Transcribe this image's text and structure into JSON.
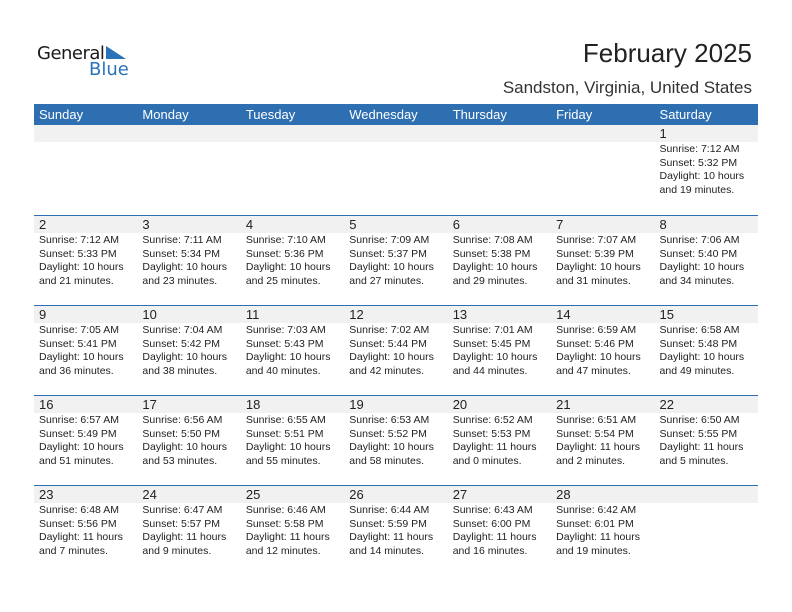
{
  "logo": {
    "general": "General",
    "blue": "Blue"
  },
  "title": "February 2025",
  "location": "Sandston, Virginia, United States",
  "weekdays": [
    "Sunday",
    "Monday",
    "Tuesday",
    "Wednesday",
    "Thursday",
    "Friday",
    "Saturday"
  ],
  "colors": {
    "header": "#2e6fb2",
    "band": "#f1f1f1"
  },
  "weeks": [
    [
      null,
      null,
      null,
      null,
      null,
      null,
      {
        "day": "1",
        "sunrise": "Sunrise: 7:12 AM",
        "sunset": "Sunset: 5:32 PM",
        "daylight1": "Daylight: 10 hours",
        "daylight2": "and 19 minutes."
      }
    ],
    [
      {
        "day": "2",
        "sunrise": "Sunrise: 7:12 AM",
        "sunset": "Sunset: 5:33 PM",
        "daylight1": "Daylight: 10 hours",
        "daylight2": "and 21 minutes."
      },
      {
        "day": "3",
        "sunrise": "Sunrise: 7:11 AM",
        "sunset": "Sunset: 5:34 PM",
        "daylight1": "Daylight: 10 hours",
        "daylight2": "and 23 minutes."
      },
      {
        "day": "4",
        "sunrise": "Sunrise: 7:10 AM",
        "sunset": "Sunset: 5:36 PM",
        "daylight1": "Daylight: 10 hours",
        "daylight2": "and 25 minutes."
      },
      {
        "day": "5",
        "sunrise": "Sunrise: 7:09 AM",
        "sunset": "Sunset: 5:37 PM",
        "daylight1": "Daylight: 10 hours",
        "daylight2": "and 27 minutes."
      },
      {
        "day": "6",
        "sunrise": "Sunrise: 7:08 AM",
        "sunset": "Sunset: 5:38 PM",
        "daylight1": "Daylight: 10 hours",
        "daylight2": "and 29 minutes."
      },
      {
        "day": "7",
        "sunrise": "Sunrise: 7:07 AM",
        "sunset": "Sunset: 5:39 PM",
        "daylight1": "Daylight: 10 hours",
        "daylight2": "and 31 minutes."
      },
      {
        "day": "8",
        "sunrise": "Sunrise: 7:06 AM",
        "sunset": "Sunset: 5:40 PM",
        "daylight1": "Daylight: 10 hours",
        "daylight2": "and 34 minutes."
      }
    ],
    [
      {
        "day": "9",
        "sunrise": "Sunrise: 7:05 AM",
        "sunset": "Sunset: 5:41 PM",
        "daylight1": "Daylight: 10 hours",
        "daylight2": "and 36 minutes."
      },
      {
        "day": "10",
        "sunrise": "Sunrise: 7:04 AM",
        "sunset": "Sunset: 5:42 PM",
        "daylight1": "Daylight: 10 hours",
        "daylight2": "and 38 minutes."
      },
      {
        "day": "11",
        "sunrise": "Sunrise: 7:03 AM",
        "sunset": "Sunset: 5:43 PM",
        "daylight1": "Daylight: 10 hours",
        "daylight2": "and 40 minutes."
      },
      {
        "day": "12",
        "sunrise": "Sunrise: 7:02 AM",
        "sunset": "Sunset: 5:44 PM",
        "daylight1": "Daylight: 10 hours",
        "daylight2": "and 42 minutes."
      },
      {
        "day": "13",
        "sunrise": "Sunrise: 7:01 AM",
        "sunset": "Sunset: 5:45 PM",
        "daylight1": "Daylight: 10 hours",
        "daylight2": "and 44 minutes."
      },
      {
        "day": "14",
        "sunrise": "Sunrise: 6:59 AM",
        "sunset": "Sunset: 5:46 PM",
        "daylight1": "Daylight: 10 hours",
        "daylight2": "and 47 minutes."
      },
      {
        "day": "15",
        "sunrise": "Sunrise: 6:58 AM",
        "sunset": "Sunset: 5:48 PM",
        "daylight1": "Daylight: 10 hours",
        "daylight2": "and 49 minutes."
      }
    ],
    [
      {
        "day": "16",
        "sunrise": "Sunrise: 6:57 AM",
        "sunset": "Sunset: 5:49 PM",
        "daylight1": "Daylight: 10 hours",
        "daylight2": "and 51 minutes."
      },
      {
        "day": "17",
        "sunrise": "Sunrise: 6:56 AM",
        "sunset": "Sunset: 5:50 PM",
        "daylight1": "Daylight: 10 hours",
        "daylight2": "and 53 minutes."
      },
      {
        "day": "18",
        "sunrise": "Sunrise: 6:55 AM",
        "sunset": "Sunset: 5:51 PM",
        "daylight1": "Daylight: 10 hours",
        "daylight2": "and 55 minutes."
      },
      {
        "day": "19",
        "sunrise": "Sunrise: 6:53 AM",
        "sunset": "Sunset: 5:52 PM",
        "daylight1": "Daylight: 10 hours",
        "daylight2": "and 58 minutes."
      },
      {
        "day": "20",
        "sunrise": "Sunrise: 6:52 AM",
        "sunset": "Sunset: 5:53 PM",
        "daylight1": "Daylight: 11 hours",
        "daylight2": "and 0 minutes."
      },
      {
        "day": "21",
        "sunrise": "Sunrise: 6:51 AM",
        "sunset": "Sunset: 5:54 PM",
        "daylight1": "Daylight: 11 hours",
        "daylight2": "and 2 minutes."
      },
      {
        "day": "22",
        "sunrise": "Sunrise: 6:50 AM",
        "sunset": "Sunset: 5:55 PM",
        "daylight1": "Daylight: 11 hours",
        "daylight2": "and 5 minutes."
      }
    ],
    [
      {
        "day": "23",
        "sunrise": "Sunrise: 6:48 AM",
        "sunset": "Sunset: 5:56 PM",
        "daylight1": "Daylight: 11 hours",
        "daylight2": "and 7 minutes."
      },
      {
        "day": "24",
        "sunrise": "Sunrise: 6:47 AM",
        "sunset": "Sunset: 5:57 PM",
        "daylight1": "Daylight: 11 hours",
        "daylight2": "and 9 minutes."
      },
      {
        "day": "25",
        "sunrise": "Sunrise: 6:46 AM",
        "sunset": "Sunset: 5:58 PM",
        "daylight1": "Daylight: 11 hours",
        "daylight2": "and 12 minutes."
      },
      {
        "day": "26",
        "sunrise": "Sunrise: 6:44 AM",
        "sunset": "Sunset: 5:59 PM",
        "daylight1": "Daylight: 11 hours",
        "daylight2": "and 14 minutes."
      },
      {
        "day": "27",
        "sunrise": "Sunrise: 6:43 AM",
        "sunset": "Sunset: 6:00 PM",
        "daylight1": "Daylight: 11 hours",
        "daylight2": "and 16 minutes."
      },
      {
        "day": "28",
        "sunrise": "Sunrise: 6:42 AM",
        "sunset": "Sunset: 6:01 PM",
        "daylight1": "Daylight: 11 hours",
        "daylight2": "and 19 minutes."
      },
      null
    ]
  ]
}
